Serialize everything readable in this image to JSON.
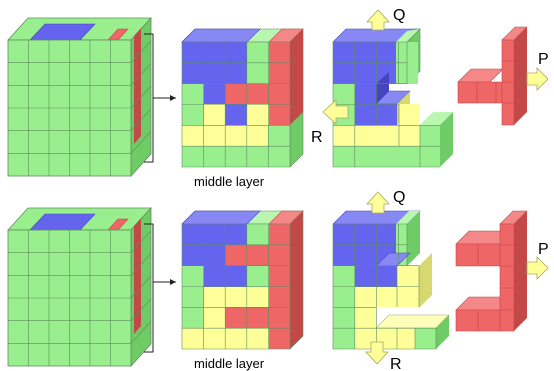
{
  "colors": {
    "green": "#99EE8E",
    "green_side": "#6FCB65",
    "green_top": "#B9F6B0",
    "blue": "#6464EE",
    "blue_side": "#4545C0",
    "red": "#EE6666",
    "red_side": "#C34848",
    "yellow": "#FFFF99",
    "yellow_side": "#D8D870",
    "grid": "#5E8E5E",
    "arrow_fill": "#FFFF99",
    "arrow_stroke": "#A8A860"
  },
  "captions": {
    "top_middle": "middle layer",
    "bottom_middle": "middle layer"
  },
  "arrow_labels": {
    "top_q": "Q",
    "top_r": "R",
    "top_p": "P",
    "bottom_q": "Q",
    "bottom_r": "R",
    "bottom_p": "P"
  },
  "icons": {
    "cube_block": "cube-block-icon",
    "bracket": "bracket-icon",
    "pointer": "arrow-icon",
    "direction_arrow": "block-arrow-icon"
  }
}
